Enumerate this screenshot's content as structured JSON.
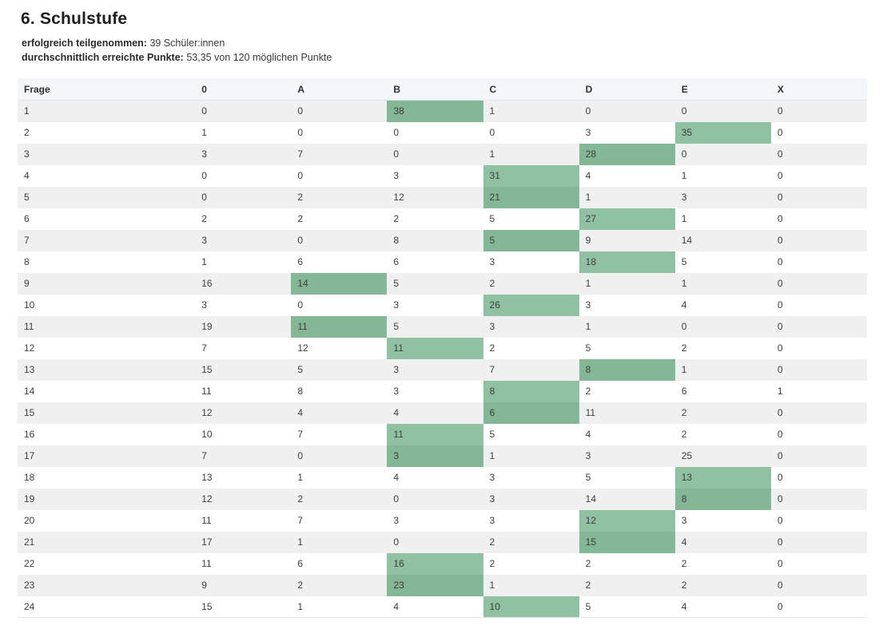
{
  "page": {
    "title": "6. Schulstufe",
    "meta": {
      "participants_label": "erfolgreich teilgenommen:",
      "participants_value": "39 Schüler:innen",
      "points_label": "durchschnittlich erreichte Punkte:",
      "points_value": "53,35 von 120 möglichen Punkte"
    }
  },
  "colors": {
    "highlight_dark": "#83b795",
    "highlight_light": "#8fc1a2",
    "header_bg": "#f4f7f9",
    "stripe_bg": "#f0f0f0"
  },
  "table": {
    "columns": [
      "Frage",
      "0",
      "A",
      "B",
      "C",
      "D",
      "E",
      "X"
    ],
    "rows": [
      {
        "frage": "1",
        "values": [
          0,
          0,
          38,
          1,
          0,
          0,
          0
        ],
        "highlight": 2
      },
      {
        "frage": "2",
        "values": [
          1,
          0,
          0,
          0,
          3,
          35,
          0
        ],
        "highlight": 5
      },
      {
        "frage": "3",
        "values": [
          3,
          7,
          0,
          1,
          28,
          0,
          0
        ],
        "highlight": 4
      },
      {
        "frage": "4",
        "values": [
          0,
          0,
          3,
          31,
          4,
          1,
          0
        ],
        "highlight": 3
      },
      {
        "frage": "5",
        "values": [
          0,
          2,
          12,
          21,
          1,
          3,
          0
        ],
        "highlight": 3
      },
      {
        "frage": "6",
        "values": [
          2,
          2,
          2,
          5,
          27,
          1,
          0
        ],
        "highlight": 4
      },
      {
        "frage": "7",
        "values": [
          3,
          0,
          8,
          5,
          9,
          14,
          0
        ],
        "highlight": 3
      },
      {
        "frage": "8",
        "values": [
          1,
          6,
          6,
          3,
          18,
          5,
          0
        ],
        "highlight": 4
      },
      {
        "frage": "9",
        "values": [
          16,
          14,
          5,
          2,
          1,
          1,
          0
        ],
        "highlight": 1
      },
      {
        "frage": "10",
        "values": [
          3,
          0,
          3,
          26,
          3,
          4,
          0
        ],
        "highlight": 3
      },
      {
        "frage": "11",
        "values": [
          19,
          11,
          5,
          3,
          1,
          0,
          0
        ],
        "highlight": 1
      },
      {
        "frage": "12",
        "values": [
          7,
          12,
          11,
          2,
          5,
          2,
          0
        ],
        "highlight": 2
      },
      {
        "frage": "13",
        "values": [
          15,
          5,
          3,
          7,
          8,
          1,
          0
        ],
        "highlight": 4
      },
      {
        "frage": "14",
        "values": [
          11,
          8,
          3,
          8,
          2,
          6,
          1
        ],
        "highlight": 3
      },
      {
        "frage": "15",
        "values": [
          12,
          4,
          4,
          6,
          11,
          2,
          0
        ],
        "highlight": 3
      },
      {
        "frage": "16",
        "values": [
          10,
          7,
          11,
          5,
          4,
          2,
          0
        ],
        "highlight": 2
      },
      {
        "frage": "17",
        "values": [
          7,
          0,
          3,
          1,
          3,
          25,
          0
        ],
        "highlight": 2
      },
      {
        "frage": "18",
        "values": [
          13,
          1,
          4,
          3,
          5,
          13,
          0
        ],
        "highlight": 5
      },
      {
        "frage": "19",
        "values": [
          12,
          2,
          0,
          3,
          14,
          8,
          0
        ],
        "highlight": 5
      },
      {
        "frage": "20",
        "values": [
          11,
          7,
          3,
          3,
          12,
          3,
          0
        ],
        "highlight": 4
      },
      {
        "frage": "21",
        "values": [
          17,
          1,
          0,
          2,
          15,
          4,
          0
        ],
        "highlight": 4
      },
      {
        "frage": "22",
        "values": [
          11,
          6,
          16,
          2,
          2,
          2,
          0
        ],
        "highlight": 2
      },
      {
        "frage": "23",
        "values": [
          9,
          2,
          23,
          1,
          2,
          2,
          0
        ],
        "highlight": 2
      },
      {
        "frage": "24",
        "values": [
          15,
          1,
          4,
          10,
          5,
          4,
          0
        ],
        "highlight": 3
      }
    ]
  }
}
